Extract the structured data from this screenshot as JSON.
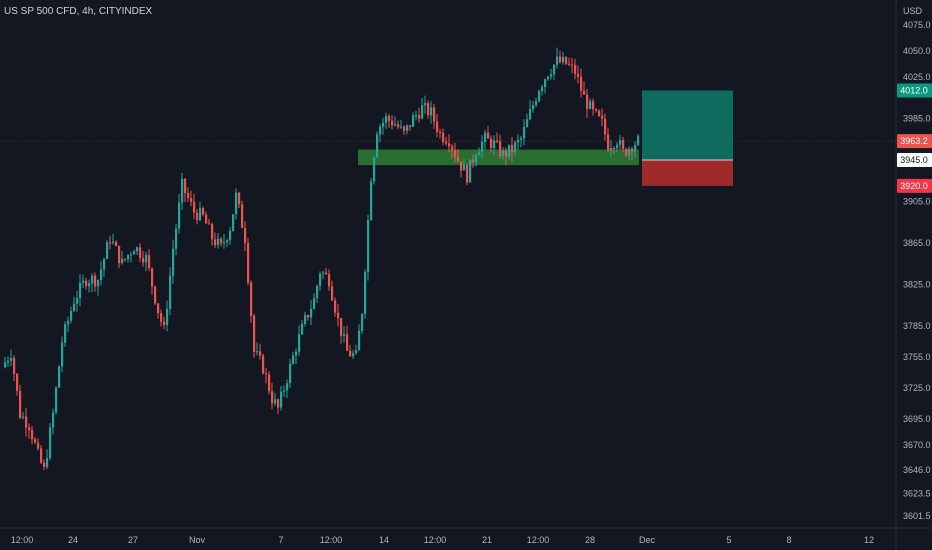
{
  "header": {
    "title": "US SP 500 CFD, 4h, CITYINDEX",
    "unit": "USD"
  },
  "colors": {
    "background": "#131722",
    "up": "#26a69a",
    "down": "#ef5350",
    "text": "#b2b5be",
    "zone": "#2e7d32",
    "profit": "#0e6b5e",
    "loss": "#9e2a2a"
  },
  "chart_data": {
    "type": "candlestick",
    "ylim": [
      3590,
      4080
    ],
    "y_ticks": [
      3601.5,
      3623.5,
      3646.0,
      3670.0,
      3695.0,
      3725.0,
      3755.0,
      3785.0,
      3825.0,
      3865.0,
      3905.0,
      3985.0,
      4025.0,
      4050.0,
      4075.0
    ],
    "x_ticks": [
      "12:00",
      "24",
      "27",
      "Nov",
      "7",
      "12:00",
      "14",
      "12:00",
      "21",
      "12:00",
      "28",
      "Dec",
      "5",
      "8",
      "12"
    ],
    "price_labels": {
      "target": "4012.0",
      "current": "3963.2",
      "entry": "3945.0",
      "stop": "3920.0"
    },
    "position": {
      "type": "long",
      "entry": 3945.0,
      "target": 4012.0,
      "stop": 3920.0
    },
    "support_zone": {
      "low": 3940,
      "high": 3955
    },
    "waypoints": [
      [
        0,
        3745
      ],
      [
        3,
        3760
      ],
      [
        6,
        3700
      ],
      [
        9,
        3690
      ],
      [
        12,
        3660
      ],
      [
        14,
        3645
      ],
      [
        17,
        3700
      ],
      [
        20,
        3770
      ],
      [
        24,
        3810
      ],
      [
        28,
        3830
      ],
      [
        32,
        3830
      ],
      [
        36,
        3870
      ],
      [
        40,
        3845
      ],
      [
        44,
        3862
      ],
      [
        48,
        3850
      ],
      [
        52,
        3800
      ],
      [
        54,
        3780
      ],
      [
        57,
        3860
      ],
      [
        60,
        3920
      ],
      [
        64,
        3895
      ],
      [
        67,
        3890
      ],
      [
        70,
        3870
      ],
      [
        73,
        3860
      ],
      [
        76,
        3880
      ],
      [
        78,
        3910
      ],
      [
        81,
        3870
      ],
      [
        84,
        3760
      ],
      [
        87,
        3745
      ],
      [
        90,
        3715
      ],
      [
        92,
        3705
      ],
      [
        95,
        3735
      ],
      [
        98,
        3765
      ],
      [
        101,
        3790
      ],
      [
        104,
        3810
      ],
      [
        106,
        3838
      ],
      [
        109,
        3830
      ],
      [
        112,
        3790
      ],
      [
        115,
        3760
      ],
      [
        118,
        3755
      ],
      [
        120,
        3800
      ],
      [
        123,
        3930
      ],
      [
        125,
        3975
      ],
      [
        128,
        3985
      ],
      [
        131,
        3980
      ],
      [
        134,
        3970
      ],
      [
        137,
        3985
      ],
      [
        140,
        3995
      ],
      [
        143,
        3990
      ],
      [
        146,
        3970
      ],
      [
        149,
        3965
      ],
      [
        152,
        3945
      ],
      [
        155,
        3930
      ],
      [
        158,
        3955
      ],
      [
        161,
        3965
      ],
      [
        164,
        3960
      ],
      [
        167,
        3950
      ],
      [
        170,
        3955
      ],
      [
        173,
        3965
      ],
      [
        176,
        3990
      ],
      [
        179,
        4015
      ],
      [
        182,
        4030
      ],
      [
        185,
        4040
      ],
      [
        188,
        4038
      ],
      [
        191,
        4030
      ],
      [
        194,
        4005
      ],
      [
        197,
        3990
      ],
      [
        200,
        3980
      ],
      [
        202,
        3960
      ],
      [
        205,
        3965
      ],
      [
        207,
        3952
      ],
      [
        210,
        3960
      ],
      [
        212,
        3963
      ]
    ]
  }
}
